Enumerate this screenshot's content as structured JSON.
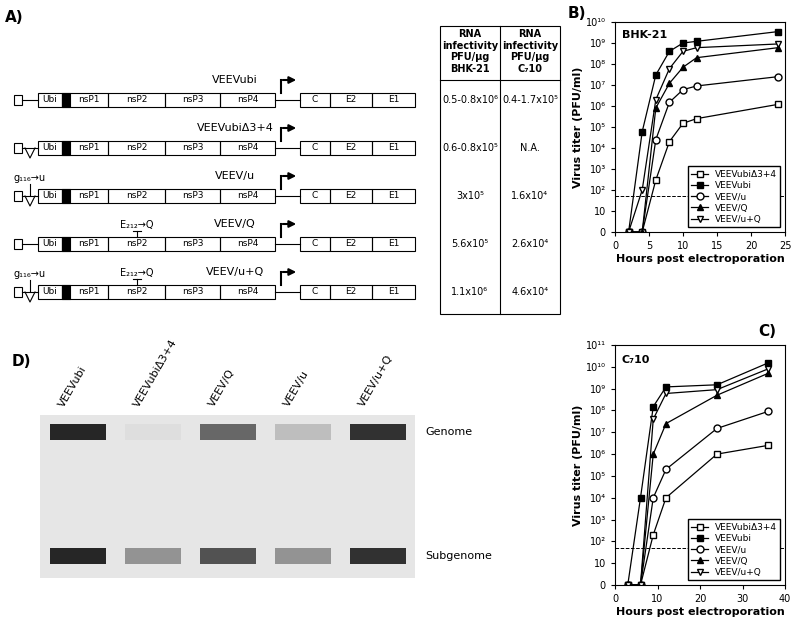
{
  "panel_labels": [
    "A)",
    "B)",
    "C)",
    "D)"
  ],
  "panel_a": {
    "genes": [
      "Ubi",
      "nsP1",
      "nsP2",
      "nsP3",
      "nsP4",
      "C",
      "E2",
      "E1"
    ],
    "constructs": [
      {
        "name": "VEEVubi",
        "loop": false,
        "mutations": []
      },
      {
        "name": "VEEVubiΔ3+4",
        "loop": true,
        "mutations": []
      },
      {
        "name": "VEEV/u",
        "loop": true,
        "mutations": [
          {
            "label": "g₁₁₆→u",
            "gene": null
          }
        ]
      },
      {
        "name": "VEEV/Q",
        "loop": false,
        "mutations": [
          {
            "label": "E₂₁₂→Q",
            "gene": "nsP2"
          }
        ]
      },
      {
        "name": "VEEV/u+Q",
        "loop": true,
        "mutations": [
          {
            "label": "g₁₁₆→u",
            "gene": null
          },
          {
            "label": "E₂₁₂→Q",
            "gene": "nsP2"
          }
        ]
      }
    ],
    "table": {
      "header": [
        [
          "RNA",
          "infectivity",
          "PFU/µg",
          "BHK-21"
        ],
        [
          "RNA",
          "infectivity",
          "PFU/µg",
          "C₇10"
        ]
      ],
      "rows": [
        [
          "0.5-0.8x10⁶",
          "0.4-1.7x10⁵"
        ],
        [
          "0.6-0.8x10⁵",
          "N.A."
        ],
        [
          "3x10⁵",
          "1.6x10⁴"
        ],
        [
          "5.6x10⁵",
          "2.6x10⁴"
        ],
        [
          "1.1x10⁶",
          "4.6x10⁴"
        ]
      ]
    }
  },
  "chart_data": [
    {
      "type": "line",
      "annotation": "BHK-21",
      "x_label": "Hours post electroporation",
      "y_label": "Virus titer (PFU/ml)",
      "log": "y",
      "xlim": [
        0,
        25
      ],
      "xticks": [
        0,
        5,
        10,
        15,
        20,
        25
      ],
      "ylim": [
        0,
        10000000000.0
      ],
      "yticks": [
        0,
        10,
        {
          "value": 100.0,
          "label": "10²"
        },
        {
          "value": 1000.0,
          "label": "10³"
        },
        {
          "value": 10000.0,
          "label": "10⁴"
        },
        {
          "value": 100000.0,
          "label": "10⁵"
        },
        {
          "value": 1000000.0,
          "label": "10⁶"
        },
        {
          "value": 10000000.0,
          "label": "10⁷"
        },
        {
          "value": 100000000.0,
          "label": "10⁸"
        },
        {
          "value": 1000000000.0,
          "label": "10⁹"
        },
        {
          "value": 10000000000.0,
          "label": "10¹⁰"
        }
      ],
      "threshold": 50,
      "legend": "lower right",
      "x": [
        2,
        4,
        6,
        8,
        10,
        12,
        24
      ],
      "series": [
        {
          "name": "VEEVubiΔ3+4",
          "color": "#000000",
          "marker": "open square",
          "line_style": "solid",
          "values": [
            0,
            0,
            300,
            20000.0,
            150000.0,
            250000.0,
            1200000.0
          ]
        },
        {
          "name": "VEEVubi",
          "color": "#000000",
          "marker": "filled square",
          "line_style": "solid",
          "values": [
            0,
            60000.0,
            30000000.0,
            400000000.0,
            1000000000.0,
            1200000000.0,
            3500000000.0
          ]
        },
        {
          "name": "VEEV/u",
          "color": "#000000",
          "marker": "open circle",
          "line_style": "solid",
          "values": [
            0,
            0,
            25000.0,
            1500000.0,
            6000000.0,
            9000000.0,
            25000000.0
          ]
        },
        {
          "name": "VEEV/Q",
          "color": "#000000",
          "marker": "filled triangle",
          "line_style": "solid",
          "values": [
            0,
            0,
            800000.0,
            12000000.0,
            70000000.0,
            200000000.0,
            600000000.0
          ]
        },
        {
          "name": "VEEV/u+Q",
          "color": "#000000",
          "marker": "open down-triangle",
          "line_style": "solid",
          "values": [
            0,
            100,
            2000000.0,
            60000000.0,
            400000000.0,
            600000000.0,
            900000000.0
          ]
        }
      ]
    },
    {
      "type": "line",
      "annotation": "C₇10",
      "x_label": "Hours post electroporation",
      "y_label": "Virus titer (PFU/ml)",
      "log": "y",
      "xlim": [
        0,
        40
      ],
      "xticks": [
        0,
        10,
        20,
        30,
        40
      ],
      "ylim": [
        0,
        100000000000.0
      ],
      "yticks": [
        0,
        10,
        {
          "value": 100.0,
          "label": "10²"
        },
        {
          "value": 1000.0,
          "label": "10³"
        },
        {
          "value": 10000.0,
          "label": "10⁴"
        },
        {
          "value": 100000.0,
          "label": "10⁵"
        },
        {
          "value": 1000000.0,
          "label": "10⁶"
        },
        {
          "value": 10000000.0,
          "label": "10⁷"
        },
        {
          "value": 100000000.0,
          "label": "10⁸"
        },
        {
          "value": 1000000000.0,
          "label": "10⁹"
        },
        {
          "value": 10000000000.0,
          "label": "10¹⁰"
        },
        {
          "value": 100000000000.0,
          "label": "10¹¹"
        }
      ],
      "threshold": 50,
      "legend": "lower right",
      "x": [
        3,
        6,
        9,
        12,
        24,
        36
      ],
      "series": [
        {
          "name": "VEEVubiΔ3+4",
          "color": "#000000",
          "marker": "open square",
          "line_style": "solid",
          "values": [
            0,
            0,
            200,
            10000.0,
            1000000.0,
            2500000.0
          ]
        },
        {
          "name": "VEEVubi",
          "color": "#000000",
          "marker": "filled square",
          "line_style": "solid",
          "values": [
            0,
            10000.0,
            150000000.0,
            1200000000.0,
            1500000000.0,
            15000000000.0
          ]
        },
        {
          "name": "VEEV/u",
          "color": "#000000",
          "marker": "open circle",
          "line_style": "solid",
          "values": [
            0,
            0,
            10000.0,
            200000.0,
            15000000.0,
            90000000.0
          ]
        },
        {
          "name": "VEEV/Q",
          "color": "#000000",
          "marker": "filled triangle",
          "line_style": "solid",
          "values": [
            0,
            0,
            1000000.0,
            25000000.0,
            500000000.0,
            5000000000.0
          ]
        },
        {
          "name": "VEEV/u+Q",
          "color": "#000000",
          "marker": "open down-triangle",
          "line_style": "solid",
          "values": [
            0,
            0,
            40000000.0,
            600000000.0,
            900000000.0,
            8000000000.0
          ]
        }
      ]
    }
  ],
  "panel_d": {
    "band_labels": [
      "Genome",
      "Subgenome"
    ],
    "lanes": [
      {
        "label": "VEEVubi",
        "genome_intensity": 1.0,
        "subgenome_intensity": 1.0
      },
      {
        "label": "VEEVubiΔ3+4",
        "genome_intensity": 0.15,
        "subgenome_intensity": 0.5
      },
      {
        "label": "VEEV/Q",
        "genome_intensity": 0.7,
        "subgenome_intensity": 0.8
      },
      {
        "label": "VEEV/u",
        "genome_intensity": 0.3,
        "subgenome_intensity": 0.5
      },
      {
        "label": "VEEV/u+Q",
        "genome_intensity": 0.95,
        "subgenome_intensity": 0.95
      }
    ]
  }
}
